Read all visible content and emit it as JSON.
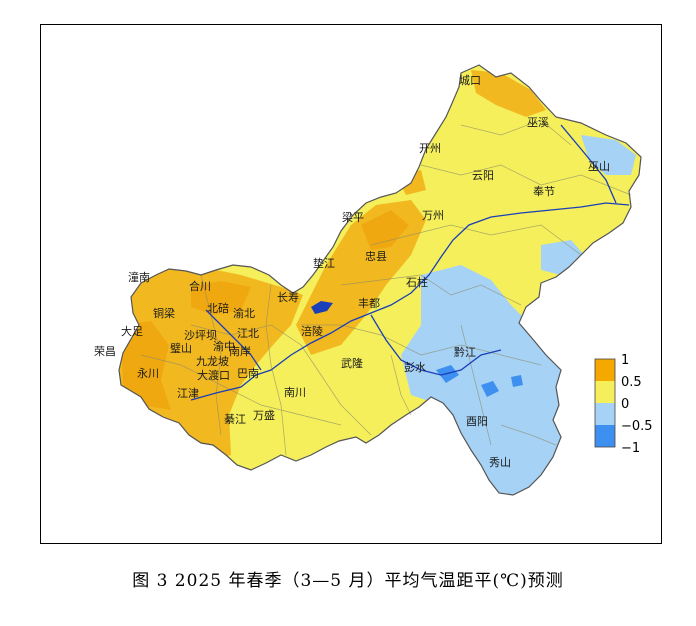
{
  "caption": "图 3   2025 年春季（3—5 月）平均气温距平(℃)预测",
  "legend": {
    "ticks": [
      "1",
      "0.5",
      "0",
      "−0.5",
      "−1"
    ],
    "colors": [
      "#f5a800",
      "#f7c82e",
      "#f4ef5a",
      "#a6d2f5",
      "#3d8ff0"
    ]
  },
  "places": [
    {
      "name": "城口"
    },
    {
      "name": "巫溪"
    },
    {
      "name": "开州"
    },
    {
      "name": "巫山"
    },
    {
      "name": "云阳"
    },
    {
      "name": "奉节"
    },
    {
      "name": "梁平"
    },
    {
      "name": "万州"
    },
    {
      "name": "垫江"
    },
    {
      "name": "忠县"
    },
    {
      "name": "石柱"
    },
    {
      "name": "潼南"
    },
    {
      "name": "合川"
    },
    {
      "name": "长寿"
    },
    {
      "name": "丰都"
    },
    {
      "name": "铜梁"
    },
    {
      "name": "北碚"
    },
    {
      "name": "渝北"
    },
    {
      "name": "大足"
    },
    {
      "name": "沙坪坝"
    },
    {
      "name": "江北"
    },
    {
      "name": "涪陵"
    },
    {
      "name": "荣昌"
    },
    {
      "name": "璧山"
    },
    {
      "name": "渝中"
    },
    {
      "name": "九龙坡"
    },
    {
      "name": "南岸"
    },
    {
      "name": "武隆"
    },
    {
      "name": "彭水"
    },
    {
      "name": "黔江"
    },
    {
      "name": "永川"
    },
    {
      "name": "大渡口"
    },
    {
      "name": "巴南"
    },
    {
      "name": "江津"
    },
    {
      "name": "南川"
    },
    {
      "name": "綦江"
    },
    {
      "name": "万盛"
    },
    {
      "name": "酉阳"
    },
    {
      "name": "秀山"
    }
  ]
}
